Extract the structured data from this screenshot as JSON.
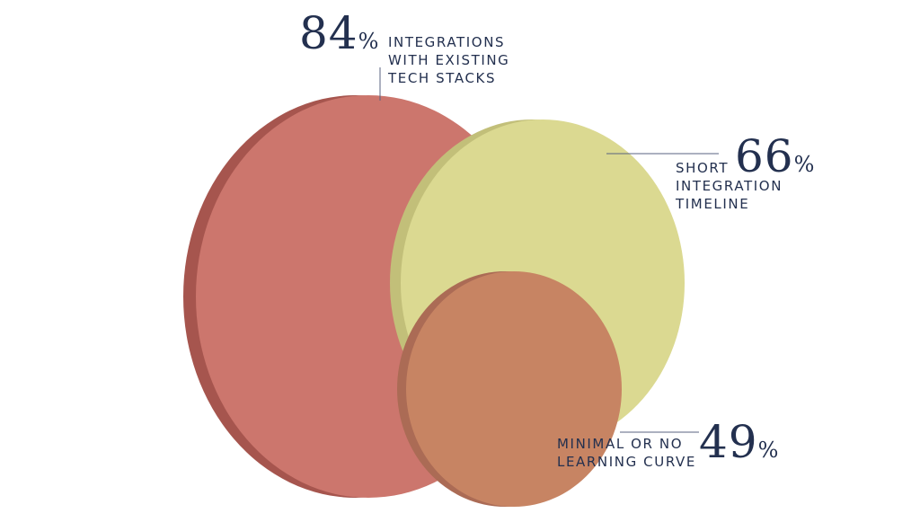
{
  "chart_data": {
    "type": "bubble",
    "title": "",
    "series": [
      {
        "value": 84,
        "unit": "%",
        "label": "INTEGRATIONS\nWITH EXISTING\nTECH STACKS",
        "color": "#cc766d",
        "shade": "#a6554e"
      },
      {
        "value": 66,
        "unit": "%",
        "label": "SHORT\nINTEGRATION\nTIMELINE",
        "color": "#dbd991",
        "shade": "#c2bf79"
      },
      {
        "value": 49,
        "unit": "%",
        "label": "MINIMAL OR NO\nLEARNING CURVE",
        "color": "#c78463",
        "shade": "#ab6b55"
      }
    ]
  },
  "colors": {
    "text": "#23304f",
    "leader": "#5a6380"
  }
}
